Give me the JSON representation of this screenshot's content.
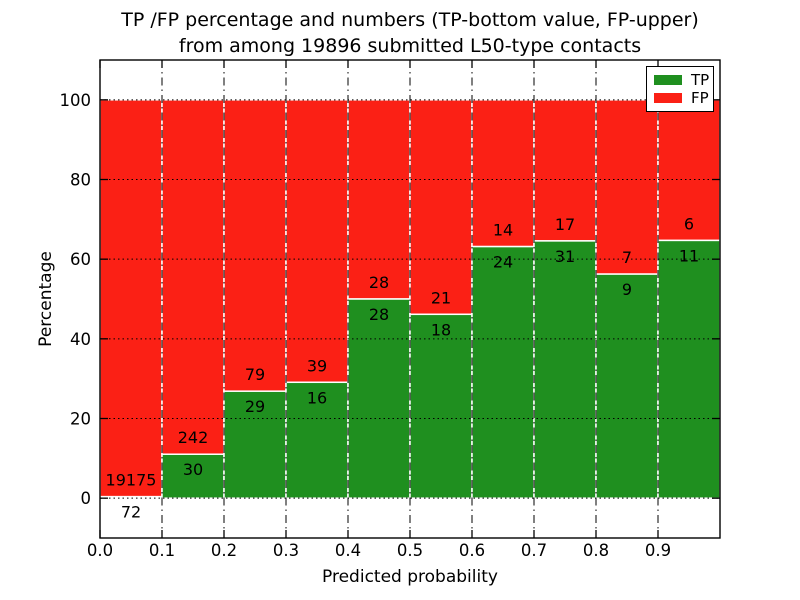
{
  "title": {
    "line1": "TP /FP percentage and numbers (TP-bottom value, FP-upper)",
    "line2": "from among 19896 submitted L50-type contacts"
  },
  "chart_data": {
    "type": "bar",
    "stacked": true,
    "orientation": "vertical",
    "title": "TP /FP percentage and numbers (TP-bottom value, FP-upper) from among 19896 submitted L50-type contacts",
    "xlabel": "Predicted probability",
    "ylabel": "Percentage",
    "total_submitted": 19896,
    "bin_edges": [
      0.0,
      0.1,
      0.2,
      0.3,
      0.4,
      0.5,
      0.6,
      0.7,
      0.8,
      0.9,
      1.0
    ],
    "x_tick_labels": [
      "0.0",
      "0.1",
      "0.2",
      "0.3",
      "0.4",
      "0.5",
      "0.6",
      "0.7",
      "0.8",
      "0.9"
    ],
    "x_tick_values": [
      0.0,
      0.1,
      0.2,
      0.3,
      0.4,
      0.5,
      0.6,
      0.7,
      0.8,
      0.9
    ],
    "y_tick_labels": [
      "0",
      "20",
      "40",
      "60",
      "80",
      "100"
    ],
    "y_tick_values": [
      0,
      20,
      40,
      60,
      80,
      100
    ],
    "xlim": [
      0.0,
      1.0
    ],
    "ylim": [
      -10,
      110
    ],
    "grid": {
      "vertical_style": "dash-dot",
      "horizontal_style": "dotted",
      "color": "#000000"
    },
    "legend": {
      "position": "upper right",
      "entries": [
        "TP",
        "FP"
      ]
    },
    "series": [
      {
        "name": "TP",
        "color": "#1f8f1f",
        "position": "bottom",
        "counts": [
          72,
          30,
          29,
          16,
          28,
          18,
          24,
          31,
          9,
          11
        ]
      },
      {
        "name": "FP",
        "color": "#fb2015",
        "position": "top",
        "counts": [
          19175,
          242,
          79,
          39,
          28,
          21,
          14,
          17,
          7,
          6
        ]
      }
    ],
    "tp_percent_of_bin": [
      0.374,
      11.029,
      26.852,
      29.091,
      50.0,
      46.154,
      63.158,
      64.583,
      56.25,
      64.706
    ],
    "bar_edge_color": "#ffffff",
    "axis_color": "#000000",
    "background_color": "#ffffff"
  }
}
